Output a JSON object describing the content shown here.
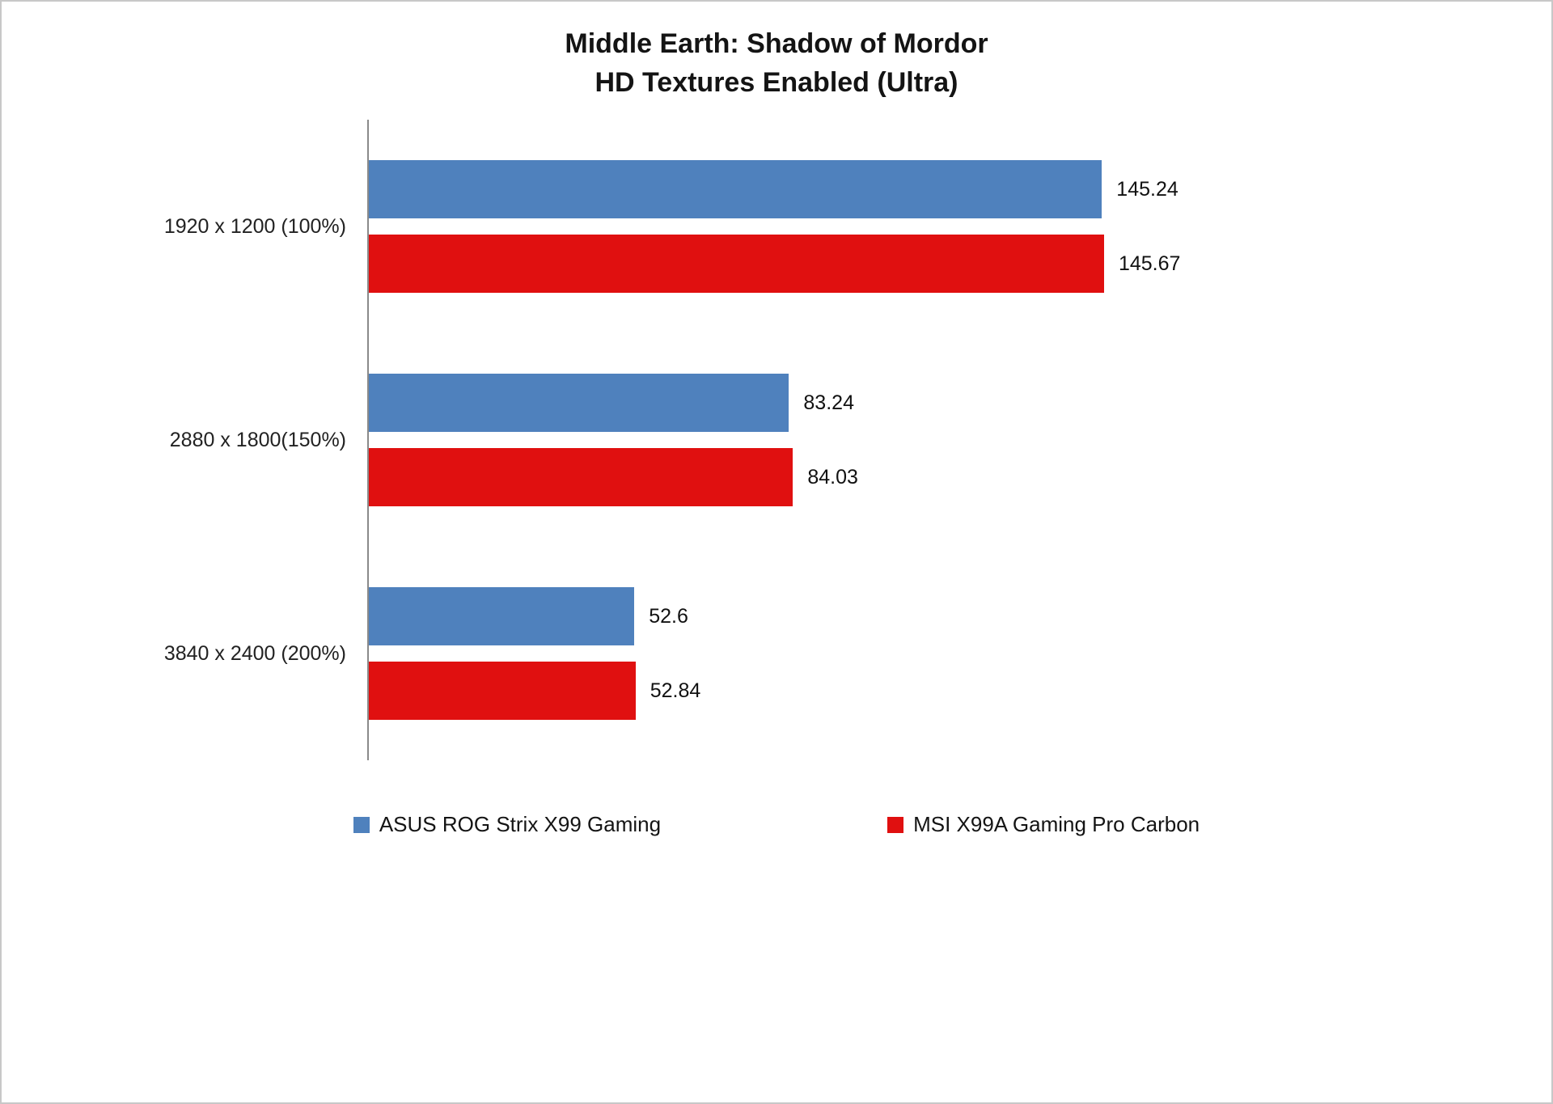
{
  "title": "Middle Earth: Shadow of Mordor",
  "subtitle": "HD Textures Enabled (Ultra)",
  "chart_data": {
    "type": "bar",
    "orientation": "horizontal",
    "title": "Middle Earth: Shadow of Mordor",
    "subtitle": "HD Textures Enabled (Ultra)",
    "categories": [
      "1920 x 1200 (100%)",
      "2880 x 1800(150%)",
      "3840 x 2400 (200%)"
    ],
    "series": [
      {
        "name": "ASUS ROG Strix X99 Gaming",
        "color": "#4f81bd",
        "values": [
          145.24,
          83.24,
          52.6
        ]
      },
      {
        "name": "MSI X99A Gaming Pro Carbon",
        "color": "#e01010",
        "values": [
          145.67,
          84.03,
          52.84
        ]
      }
    ],
    "xlim": [
      0,
      150
    ],
    "value_labels": true,
    "grid": false,
    "legend_position": "bottom",
    "axis_color": "#8a8a8a"
  }
}
